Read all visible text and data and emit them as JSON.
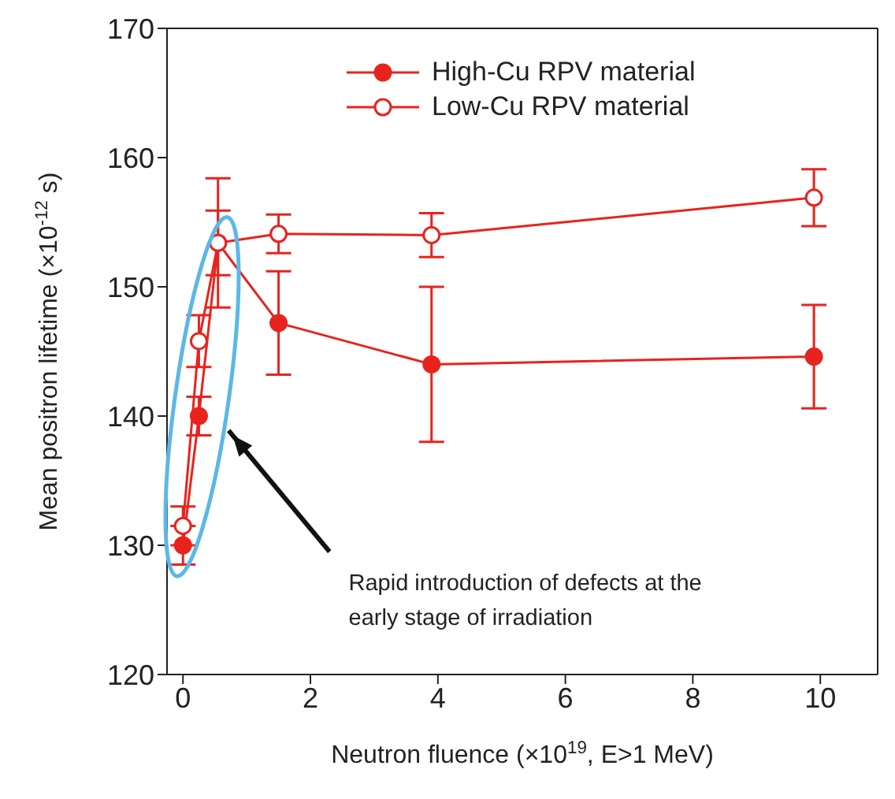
{
  "chart_data": {
    "type": "line",
    "xlabel": "Neutron fluence (×10$^{19}$, E>1 MeV)",
    "ylabel": "Mean positron lifetime (×10$^{-12}$ s)",
    "xlim": [
      -0.25,
      10.9
    ],
    "xticks": [
      0,
      2,
      4,
      6,
      8,
      10
    ],
    "ylim": [
      120,
      170
    ],
    "yticks": [
      120,
      130,
      140,
      150,
      160,
      170
    ],
    "legend": "top",
    "marker": "circle",
    "line_style": "solid",
    "annotations": [
      "Rapid introduction of defects at the early stage of irradiation"
    ],
    "series": [
      {
        "name": "High-Cu RPV material",
        "color": "#e8231e",
        "x": [
          0,
          0.25,
          0.55,
          1.5,
          3.9,
          9.9
        ],
        "values": [
          130,
          140,
          153.4,
          147.2,
          144,
          144.6
        ],
        "errors": [
          1.5,
          1.5,
          5,
          4,
          6,
          4
        ]
      },
      {
        "name": "Low-Cu RPV material",
        "color": "#e8231e",
        "x": [
          0,
          0.25,
          0.55,
          1.5,
          3.9,
          9.9
        ],
        "values": [
          131.5,
          145.8,
          153.4,
          154.1,
          154,
          156.9
        ],
        "errors": [
          1.5,
          2,
          2.5,
          1.5,
          1.7,
          2.2
        ]
      }
    ]
  }
}
